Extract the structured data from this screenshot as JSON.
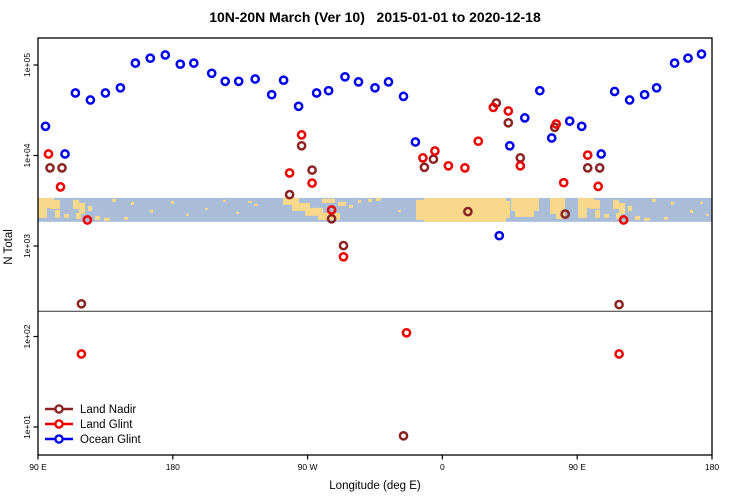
{
  "title": "10N-20N March (Ver 10)   2015-01-01 to 2020-12-18",
  "chart_data": {
    "type": "scatter",
    "title": "10N-20N March (Ver 10)   2015-01-01 to 2020-12-18",
    "xlabel": "Longitude (deg E)",
    "ylabel": "N Total",
    "x_axis": {
      "note": "longitude axis runs eastward from 90E, wrapping the globe 1.25 times",
      "range_deg": [
        90,
        540
      ],
      "ticks": [
        {
          "deg": 90,
          "label": "90 E"
        },
        {
          "deg": 180,
          "label": "180"
        },
        {
          "deg": 270,
          "label": "90 W"
        },
        {
          "deg": 360,
          "label": "0"
        },
        {
          "deg": 450,
          "label": "90 E"
        },
        {
          "deg": 540,
          "label": "180"
        }
      ]
    },
    "y_axis": {
      "scale": "log10",
      "range": [
        5,
        200000
      ],
      "ticks": [
        {
          "value": 10,
          "label": "1e+01"
        },
        {
          "value": 100,
          "label": "1e+02"
        },
        {
          "value": 1000,
          "label": "1e+03"
        },
        {
          "value": 10000,
          "label": "1e+04"
        },
        {
          "value": 100000,
          "label": "1e+05"
        }
      ]
    },
    "reference_line_n": 190,
    "legend_position": "bottom-left",
    "grid": false,
    "series": [
      {
        "name": "Land Nadir",
        "color": "#8B2323",
        "points": [
          [
            98,
            7300
          ],
          [
            106,
            7300
          ],
          [
            119,
            230
          ],
          [
            258,
            3700
          ],
          [
            266,
            12800
          ],
          [
            273,
            6900
          ],
          [
            286,
            2000
          ],
          [
            294,
            1010
          ],
          [
            334,
            8
          ],
          [
            348,
            7400
          ],
          [
            354,
            9100
          ],
          [
            377,
            2400
          ],
          [
            396,
            38000
          ],
          [
            404,
            23000
          ],
          [
            412,
            9400
          ],
          [
            435,
            20500
          ],
          [
            442,
            2250
          ],
          [
            457,
            7300
          ],
          [
            465,
            7300
          ],
          [
            478,
            225
          ]
        ]
      },
      {
        "name": "Land Glint",
        "color": "#EE0000",
        "points": [
          [
            97,
            10400
          ],
          [
            105,
            4500
          ],
          [
            119,
            64
          ],
          [
            123,
            1940
          ],
          [
            258,
            6400
          ],
          [
            266,
            16900
          ],
          [
            273,
            4950
          ],
          [
            286,
            2500
          ],
          [
            294,
            760
          ],
          [
            336,
            110
          ],
          [
            347,
            9400
          ],
          [
            355,
            11200
          ],
          [
            364,
            7700
          ],
          [
            375,
            7300
          ],
          [
            384,
            14400
          ],
          [
            394,
            34000
          ],
          [
            404,
            31000
          ],
          [
            412,
            7700
          ],
          [
            436,
            22300
          ],
          [
            441,
            5000
          ],
          [
            457,
            10100
          ],
          [
            464,
            4550
          ],
          [
            478,
            64
          ],
          [
            481,
            1940
          ]
        ]
      },
      {
        "name": "Ocean Glint",
        "color": "#0000EE",
        "points": [
          [
            95,
            21000
          ],
          [
            108,
            10400
          ],
          [
            115,
            49000
          ],
          [
            125,
            41000
          ],
          [
            135,
            49000
          ],
          [
            145,
            56000
          ],
          [
            155,
            105000
          ],
          [
            165,
            119000
          ],
          [
            175,
            129000
          ],
          [
            185,
            102000
          ],
          [
            194,
            105000
          ],
          [
            206,
            81000
          ],
          [
            215,
            66000
          ],
          [
            224,
            66000
          ],
          [
            235,
            70000
          ],
          [
            246,
            47000
          ],
          [
            254,
            68000
          ],
          [
            264,
            35000
          ],
          [
            276,
            49000
          ],
          [
            284,
            52000
          ],
          [
            295,
            74000
          ],
          [
            304,
            65000
          ],
          [
            315,
            56000
          ],
          [
            324,
            65000
          ],
          [
            334,
            45000
          ],
          [
            342,
            14100
          ],
          [
            398,
            1300
          ],
          [
            405,
            12800
          ],
          [
            415,
            26000
          ],
          [
            425,
            52000
          ],
          [
            433,
            15600
          ],
          [
            445,
            24000
          ],
          [
            453,
            21000
          ],
          [
            466,
            10400
          ],
          [
            475,
            51000
          ],
          [
            485,
            41000
          ],
          [
            495,
            47000
          ],
          [
            503,
            56000
          ],
          [
            515,
            105000
          ],
          [
            524,
            119000
          ],
          [
            533,
            132000
          ]
        ]
      }
    ],
    "map_band": {
      "description": "decorative 10N-20N world-map strip",
      "ocean_color": "#A9BDD8",
      "land_color": "#F8D88A",
      "n_top": 3400,
      "n_bottom": 1850,
      "land_patches": [
        [
          38,
          0,
          16,
          10
        ],
        [
          38,
          8,
          9,
          12
        ],
        [
          50,
          2,
          10,
          9
        ],
        [
          55,
          12,
          5,
          8
        ],
        [
          64,
          16,
          5,
          4
        ],
        [
          73,
          2,
          6,
          9
        ],
        [
          79,
          5,
          6,
          11
        ],
        [
          76,
          15,
          5,
          6
        ],
        [
          88,
          8,
          4,
          5
        ],
        [
          95,
          18,
          5,
          4
        ],
        [
          104,
          20,
          6,
          3
        ],
        [
          112,
          1,
          4,
          3
        ],
        [
          124,
          19,
          4,
          3
        ],
        [
          131,
          4,
          3,
          3
        ],
        [
          150,
          12,
          3,
          3
        ],
        [
          171,
          3,
          3,
          3
        ],
        [
          186,
          16,
          3,
          2
        ],
        [
          205,
          10,
          3,
          2
        ],
        [
          223,
          2,
          3,
          2
        ],
        [
          236,
          14,
          3,
          2
        ],
        [
          248,
          3,
          4,
          2
        ],
        [
          254,
          6,
          4,
          2
        ],
        [
          283,
          0,
          16,
          7
        ],
        [
          292,
          5,
          18,
          8
        ],
        [
          305,
          10,
          18,
          8
        ],
        [
          318,
          15,
          22,
          7
        ],
        [
          322,
          1,
          13,
          4
        ],
        [
          338,
          4,
          8,
          4
        ],
        [
          349,
          7,
          4,
          3
        ],
        [
          358,
          2,
          3,
          3
        ],
        [
          368,
          1,
          4,
          3
        ],
        [
          376,
          0,
          5,
          3
        ],
        [
          398,
          12,
          3,
          2
        ],
        [
          416,
          2,
          12,
          20
        ],
        [
          424,
          0,
          82,
          24
        ],
        [
          504,
          3,
          6,
          17
        ],
        [
          511,
          0,
          28,
          13
        ],
        [
          515,
          11,
          19,
          8
        ],
        [
          550,
          0,
          15,
          16
        ],
        [
          556,
          14,
          9,
          7
        ],
        [
          578,
          0,
          16,
          10
        ],
        [
          578,
          8,
          9,
          12
        ],
        [
          590,
          2,
          10,
          9
        ],
        [
          595,
          12,
          5,
          8
        ],
        [
          604,
          16,
          5,
          4
        ],
        [
          613,
          2,
          6,
          9
        ],
        [
          619,
          5,
          6,
          11
        ],
        [
          616,
          15,
          5,
          6
        ],
        [
          628,
          8,
          4,
          5
        ],
        [
          635,
          18,
          5,
          4
        ],
        [
          644,
          20,
          6,
          3
        ],
        [
          652,
          1,
          4,
          3
        ],
        [
          664,
          19,
          4,
          3
        ],
        [
          671,
          4,
          3,
          3
        ],
        [
          690,
          12,
          3,
          3
        ],
        [
          700,
          4,
          3,
          2
        ],
        [
          706,
          16,
          3,
          2
        ]
      ]
    }
  },
  "legend": {
    "entries": [
      {
        "label": "Land Nadir"
      },
      {
        "label": "Land Glint"
      },
      {
        "label": "Ocean Glint"
      }
    ]
  }
}
